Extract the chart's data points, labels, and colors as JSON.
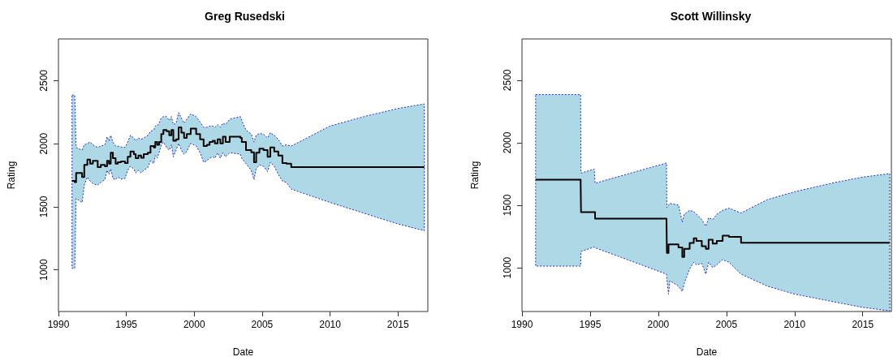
{
  "chart_data": [
    {
      "type": "step",
      "title": "Greg Rusedski",
      "xlabel": "Date",
      "ylabel": "Rating",
      "xlim": [
        1990,
        2017.2
      ],
      "ylim": [
        670,
        2830
      ],
      "xticks": [
        1990,
        1995,
        2000,
        2005,
        2010,
        2015
      ],
      "yticks": [
        1000,
        1500,
        2000,
        2500
      ],
      "x": [
        1991.0,
        1991.2,
        1991.3,
        1991.74,
        1991.9,
        1992.13,
        1992.33,
        1992.53,
        1992.89,
        1993.12,
        1993.42,
        1993.58,
        1993.72,
        1993.85,
        1994.01,
        1994.21,
        1994.37,
        1994.6,
        1994.9,
        1995.1,
        1995.3,
        1995.55,
        1995.69,
        1995.89,
        1996.09,
        1996.28,
        1996.58,
        1996.78,
        1997.02,
        1997.13,
        1997.27,
        1997.41,
        1997.57,
        1997.73,
        1997.96,
        1998.16,
        1998.32,
        1998.46,
        1998.66,
        1998.85,
        1999.05,
        1999.25,
        1999.45,
        1999.74,
        2000.14,
        2000.43,
        2000.69,
        2000.93,
        2001.13,
        2001.36,
        2001.52,
        2001.72,
        2001.92,
        2002.11,
        2002.31,
        2002.61,
        2003.4,
        2003.5,
        2003.81,
        2004.2,
        2004.4,
        2004.56,
        2004.8,
        2005.1,
        2005.4,
        2005.6,
        2005.89,
        2006.19,
        2006.49,
        2006.79,
        2007.14,
        2010,
        2012.5,
        2015,
        2016.94
      ],
      "series": [
        {
          "color": "#000000",
          "values": [
            1705,
            1695,
            1768,
            1736,
            1832,
            1874,
            1842,
            1864,
            1815,
            1832,
            1821,
            1864,
            1842,
            1928,
            1885,
            1842,
            1853,
            1860,
            1847,
            1896,
            1938,
            1917,
            1885,
            1906,
            1889,
            1917,
            1928,
            1981,
            1970,
            2013,
            1991,
            2013,
            2076,
            2108,
            2098,
            2066,
            2108,
            2023,
            2034,
            2130,
            2087,
            2045,
            2076,
            2119,
            2076,
            2034,
            1981,
            1991,
            2013,
            2023,
            2002,
            2034,
            2002,
            2055,
            2013,
            2055,
            2045,
            2013,
            1949,
            1932,
            1853,
            1928,
            1960,
            1949,
            1896,
            1970,
            1938,
            1906,
            1847,
            1842,
            1815,
            1815,
            1815,
            1815,
            1815
          ],
          "upper": [
            2385,
            2385,
            1970,
            1949,
            1991,
            2002,
            2013,
            1991,
            1970,
            1981,
            1991,
            2055,
            2023,
            2066,
            2013,
            1981,
            1981,
            1974,
            1970,
            2013,
            2066,
            2045,
            2023,
            2045,
            2034,
            2045,
            2066,
            2098,
            2108,
            2140,
            2140,
            2162,
            2204,
            2215,
            2215,
            2183,
            2215,
            2151,
            2162,
            2247,
            2204,
            2162,
            2194,
            2236,
            2215,
            2172,
            2130,
            2130,
            2140,
            2140,
            2130,
            2151,
            2130,
            2162,
            2151,
            2194,
            2215,
            2183,
            2108,
            2076,
            2013,
            2066,
            2081,
            2076,
            2045,
            2087,
            2066,
            2034,
            1981,
            1991,
            1981,
            2140,
            2215,
            2279,
            2315
          ],
          "lower": [
            1013,
            1013,
            1566,
            1534,
            1672,
            1736,
            1704,
            1683,
            1672,
            1693,
            1715,
            1789,
            1757,
            1800,
            1725,
            1715,
            1736,
            1719,
            1725,
            1789,
            1821,
            1800,
            1768,
            1789,
            1768,
            1789,
            1811,
            1864,
            1842,
            1906,
            1885,
            1928,
            1991,
            2013,
            1970,
            1949,
            1991,
            1896,
            1949,
            2002,
            1949,
            1917,
            1938,
            2002,
            1981,
            1928,
            1853,
            1864,
            1885,
            1896,
            1885,
            1928,
            1885,
            1928,
            1896,
            1928,
            1917,
            1885,
            1842,
            1789,
            1715,
            1800,
            1832,
            1821,
            1779,
            1853,
            1821,
            1757,
            1704,
            1693,
            1640,
            1534,
            1449,
            1364,
            1310
          ]
        }
      ]
    },
    {
      "type": "step",
      "title": "Scott Willinsky",
      "xlabel": "Date",
      "ylabel": "Rating",
      "xlim": [
        1990,
        2017.1
      ],
      "ylim": [
        650,
        2830
      ],
      "xticks": [
        1990,
        1995,
        2000,
        2005,
        2010,
        2015
      ],
      "yticks": [
        1000,
        1500,
        2000,
        2500
      ],
      "x": [
        1991.0,
        1994.3,
        1994.33,
        1995.3,
        1995.36,
        2000.6,
        2000.63,
        2000.75,
        2000.85,
        2001.48,
        2001.76,
        2001.9,
        2002.3,
        2002.6,
        2002.8,
        2003.19,
        2003.49,
        2003.69,
        2003.99,
        2004.29,
        2004.72,
        2005.18,
        2006.07,
        2008,
        2010,
        2013,
        2015,
        2016.98
      ],
      "series": [
        {
          "color": "#000000",
          "values": [
            1704,
            1704,
            1444,
            1444,
            1393,
            1393,
            1119,
            1187,
            1187,
            1162,
            1087,
            1151,
            1198,
            1236,
            1215,
            1172,
            1151,
            1225,
            1194,
            1215,
            1257,
            1247,
            1200,
            1200,
            1200,
            1200,
            1200,
            1200
          ],
          "upper": [
            2385,
            2385,
            1757,
            1789,
            1676,
            1838,
            1481,
            1500,
            1515,
            1502,
            1364,
            1428,
            1459,
            1449,
            1428,
            1385,
            1332,
            1400,
            1385,
            1428,
            1459,
            1477,
            1438,
            1545,
            1608,
            1683,
            1725,
            1753
          ],
          "lower": [
            1013,
            1013,
            1130,
            1166,
            1160,
            949,
            906,
            789,
            896,
            853,
            810,
            874,
            991,
            1044,
            1023,
            1034,
            949,
            1044,
            1002,
            1023,
            1066,
            1044,
            949,
            853,
            789,
            725,
            683,
            655
          ]
        }
      ]
    }
  ]
}
